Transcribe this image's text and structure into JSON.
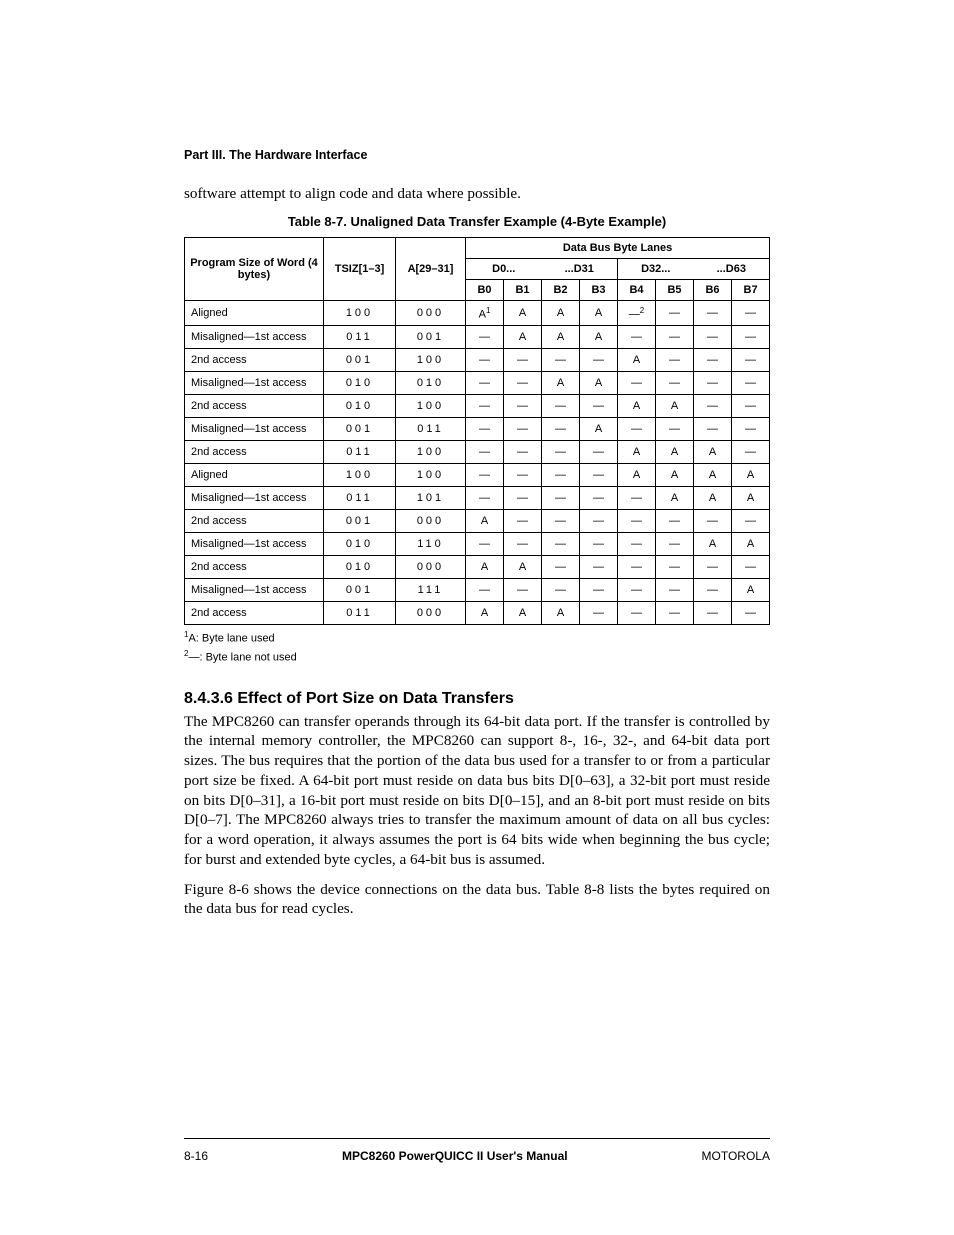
{
  "part_heading": "Part III. The Hardware Interface",
  "intro_text": "software attempt to align code and data where possible.",
  "table_caption": "Table 8-7. Unaligned Data Transfer Example (4-Byte Example)",
  "col_program": "Program Size of Word (4 bytes)",
  "col_tsiz": "TSIZ[1–3]",
  "col_a29": "A[29–31]",
  "col_lanes_group": "Data Bus Byte Lanes",
  "col_d0": "D0...",
  "col_d31": "...D31",
  "col_d32": "D32...",
  "col_d63": "...D63",
  "bh": {
    "b0": "B0",
    "b1": "B1",
    "b2": "B2",
    "b3": "B3",
    "b4": "B4",
    "b5": "B5",
    "b6": "B6",
    "b7": "B7"
  },
  "rows": [
    {
      "label": "Aligned",
      "tsiz": "100",
      "a": "000",
      "c": [
        "A¹",
        "A",
        "A",
        "A",
        "—²",
        "—",
        "—",
        "—"
      ]
    },
    {
      "label": "Misaligned—1st access",
      "tsiz": "011",
      "a": "001",
      "c": [
        "—",
        "A",
        "A",
        "A",
        "—",
        "—",
        "—",
        "—"
      ]
    },
    {
      "label": "2nd access",
      "tsiz": "001",
      "a": "100",
      "c": [
        "—",
        "—",
        "—",
        "—",
        "A",
        "—",
        "—",
        "—"
      ]
    },
    {
      "label": "Misaligned—1st access",
      "tsiz": "010",
      "a": "010",
      "c": [
        "—",
        "—",
        "A",
        "A",
        "—",
        "—",
        "—",
        "—"
      ]
    },
    {
      "label": "2nd access",
      "tsiz": "010",
      "a": "100",
      "c": [
        "—",
        "—",
        "—",
        "—",
        "A",
        "A",
        "—",
        "—"
      ]
    },
    {
      "label": "Misaligned—1st access",
      "tsiz": "001",
      "a": "011",
      "c": [
        "—",
        "—",
        "—",
        "A",
        "—",
        "—",
        "—",
        "—"
      ]
    },
    {
      "label": "2nd access",
      "tsiz": "011",
      "a": "100",
      "c": [
        "—",
        "—",
        "—",
        "—",
        "A",
        "A",
        "A",
        "—"
      ]
    },
    {
      "label": "Aligned",
      "tsiz": "100",
      "a": "100",
      "c": [
        "—",
        "—",
        "—",
        "—",
        "A",
        "A",
        "A",
        "A"
      ]
    },
    {
      "label": "Misaligned—1st access",
      "tsiz": "011",
      "a": "101",
      "c": [
        "—",
        "—",
        "—",
        "—",
        "—",
        "A",
        "A",
        "A"
      ]
    },
    {
      "label": "2nd access",
      "tsiz": "001",
      "a": "000",
      "c": [
        "A",
        "—",
        "—",
        "—",
        "—",
        "—",
        "—",
        "—"
      ]
    },
    {
      "label": "Misaligned—1st access",
      "tsiz": "010",
      "a": "110",
      "c": [
        "—",
        "—",
        "—",
        "—",
        "—",
        "—",
        "A",
        "A"
      ]
    },
    {
      "label": "2nd access",
      "tsiz": "010",
      "a": "000",
      "c": [
        "A",
        "A",
        "—",
        "—",
        "—",
        "—",
        "—",
        "—"
      ]
    },
    {
      "label": "Misaligned—1st access",
      "tsiz": "001",
      "a": "111",
      "c": [
        "—",
        "—",
        "—",
        "—",
        "—",
        "—",
        "—",
        "A"
      ]
    },
    {
      "label": "2nd access",
      "tsiz": "011",
      "a": "000",
      "c": [
        "A",
        "A",
        "A",
        "—",
        "—",
        "—",
        "—",
        "—"
      ]
    }
  ],
  "footnote1_pre": "1",
  "footnote1": "A: Byte lane used",
  "footnote2_pre": "2",
  "footnote2": "—: Byte lane not used",
  "section_heading": "8.4.3.6  Effect of Port Size on Data Transfers",
  "para1": "The MPC8260 can transfer operands through its 64-bit data port. If the transfer is controlled by the internal memory controller, the MPC8260 can support 8-, 16-, 32-, and 64-bit data port sizes. The bus requires that the portion of the data bus used for a transfer to or from a particular port size be fixed. A 64-bit port must reside on data bus bits D[0–63], a 32-bit port must reside on bits D[0–31], a 16-bit port must reside on bits D[0–15], and an 8-bit port must reside on bits D[0–7]. The MPC8260 always tries to transfer the maximum amount of data on all bus cycles: for a word operation, it always assumes the port is 64 bits wide when beginning the bus cycle; for burst and extended byte cycles, a 64-bit bus is assumed.",
  "para2": "Figure 8-6 shows the device connections on the data bus. Table 8-8 lists the bytes required on the data bus for read cycles.",
  "footer_left": "8-16",
  "footer_center": "MPC8260 PowerQUICC II User's Manual",
  "footer_right": "MOTOROLA",
  "col_widths": {
    "label": 139,
    "tsiz": 72,
    "a": 70,
    "lane": 38
  }
}
